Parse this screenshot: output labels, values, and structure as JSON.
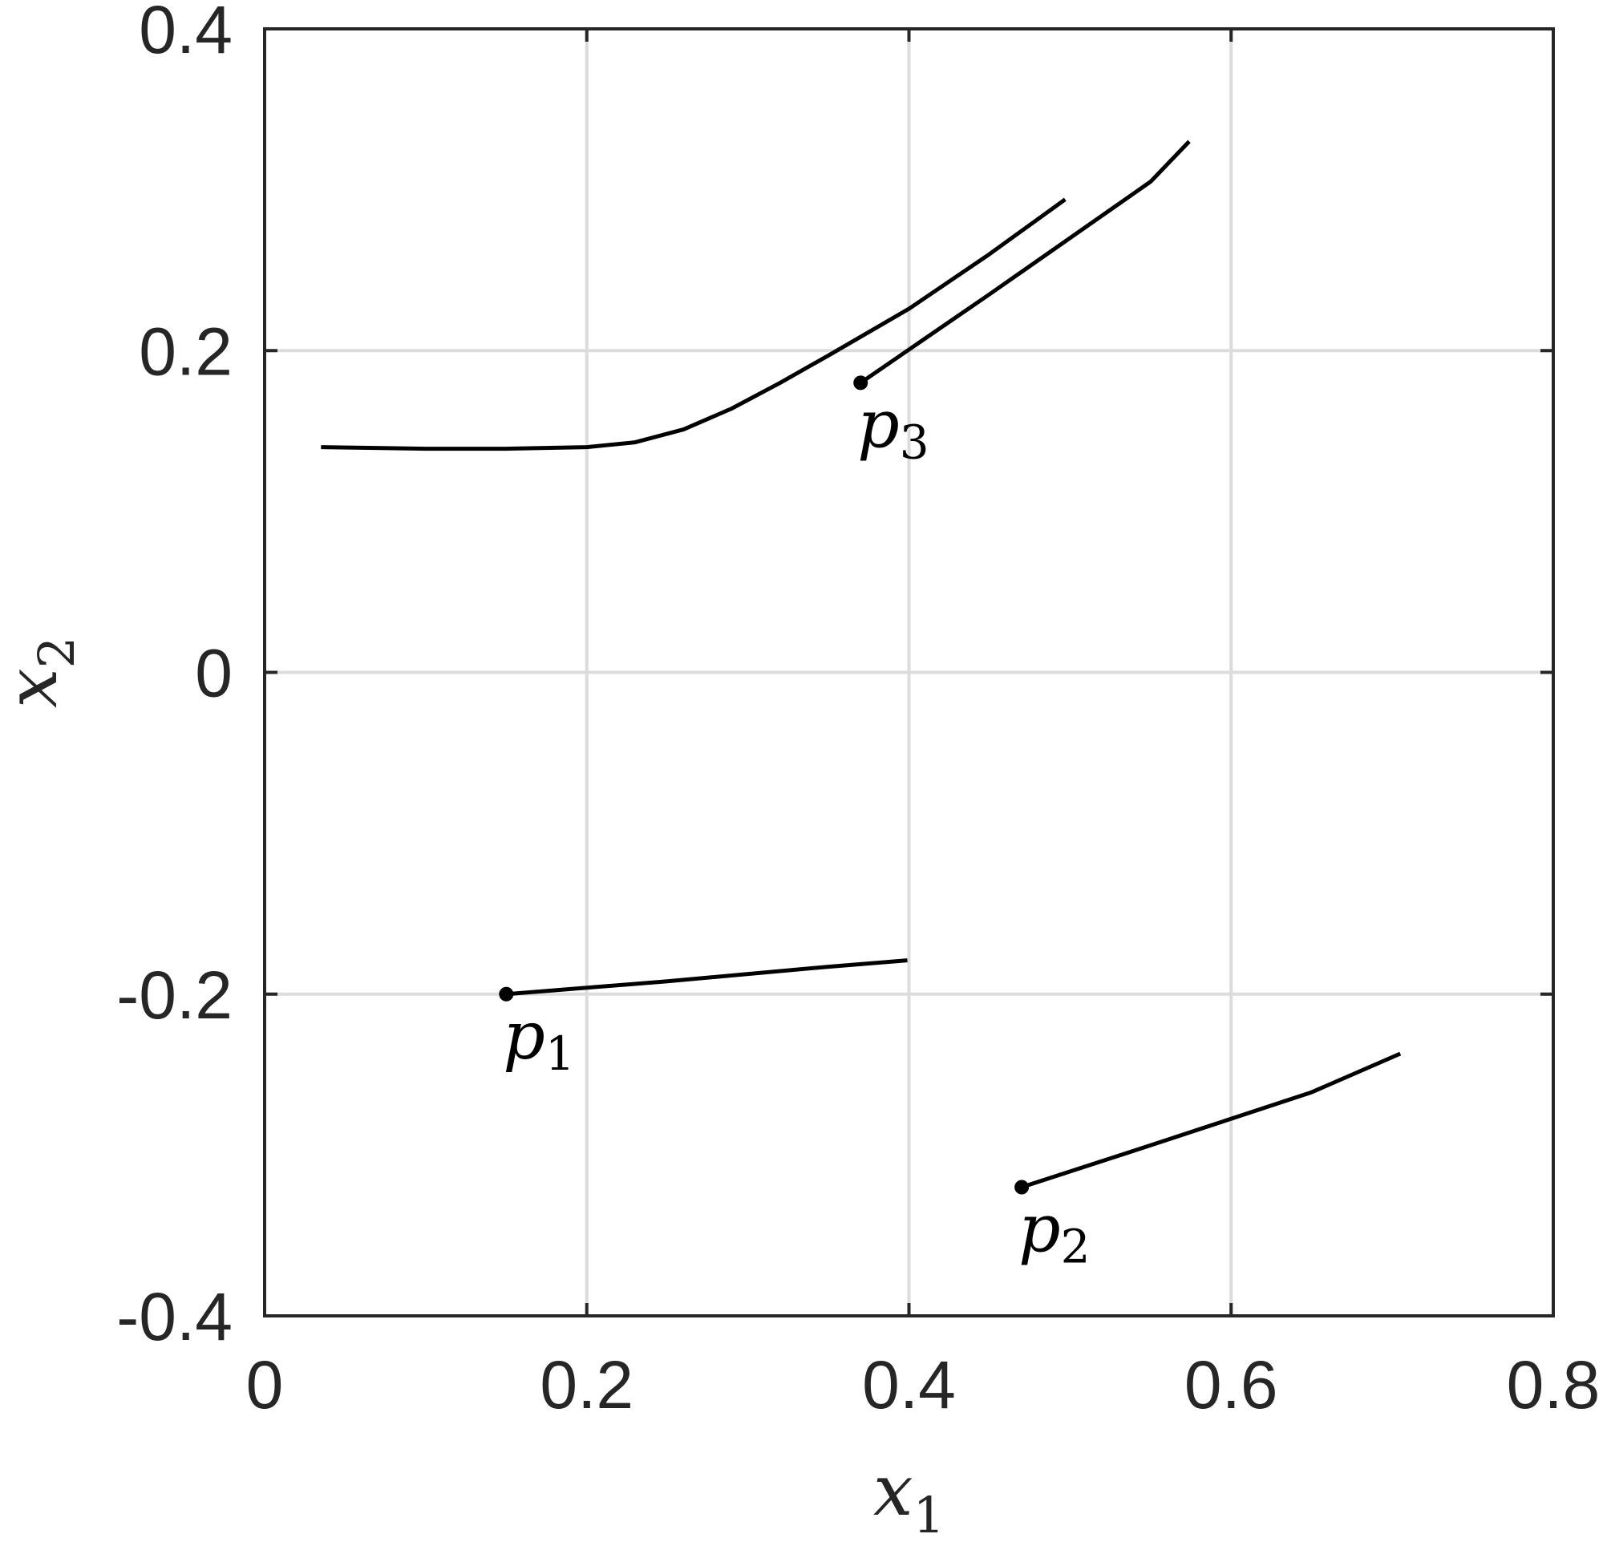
{
  "chart_data": {
    "type": "line",
    "title": "",
    "xlabel": "x_1",
    "ylabel": "x_2",
    "xlabel_parts": {
      "main": "x",
      "sub": "1"
    },
    "ylabel_parts": {
      "main": "x",
      "sub": "2"
    },
    "xlim": [
      0,
      0.8
    ],
    "ylim": [
      -0.4,
      0.4
    ],
    "grid": true,
    "x_ticks": [
      0,
      0.2,
      0.4,
      0.6,
      0.8
    ],
    "x_tick_labels": [
      "0",
      "0.2",
      "0.4",
      "0.6",
      "0.8"
    ],
    "y_ticks": [
      -0.4,
      -0.2,
      0,
      0.2,
      0.4
    ],
    "y_tick_labels": [
      "-0.4",
      "-0.2",
      "0",
      "0.2",
      "0.4"
    ],
    "line_color": "#000000",
    "series": [
      {
        "label_main": "p",
        "label_sub": "1",
        "start": [
          0.15,
          -0.2
        ],
        "x": [
          0.15,
          0.25,
          0.35,
          0.399
        ],
        "y": [
          -0.2,
          -0.192,
          -0.183,
          -0.179
        ]
      },
      {
        "label_main": "p",
        "label_sub": "2",
        "start": [
          0.47,
          -0.32
        ],
        "x": [
          0.47,
          0.55,
          0.65,
          0.705
        ],
        "y": [
          -0.32,
          -0.294,
          -0.261,
          -0.237
        ]
      },
      {
        "label_main": "p",
        "label_sub": "3",
        "start": [
          0.37,
          0.18
        ],
        "x": [
          0.37,
          0.45,
          0.55,
          0.574
        ],
        "y": [
          0.18,
          0.235,
          0.305,
          0.33
        ]
      },
      {
        "label_main": "",
        "label_sub": "",
        "start": null,
        "x": [
          0.035,
          0.1,
          0.15,
          0.2,
          0.23,
          0.26,
          0.29,
          0.32,
          0.35,
          0.4,
          0.45,
          0.497
        ],
        "y": [
          0.14,
          0.139,
          0.139,
          0.14,
          0.143,
          0.151,
          0.164,
          0.18,
          0.197,
          0.226,
          0.26,
          0.294
        ]
      }
    ]
  }
}
